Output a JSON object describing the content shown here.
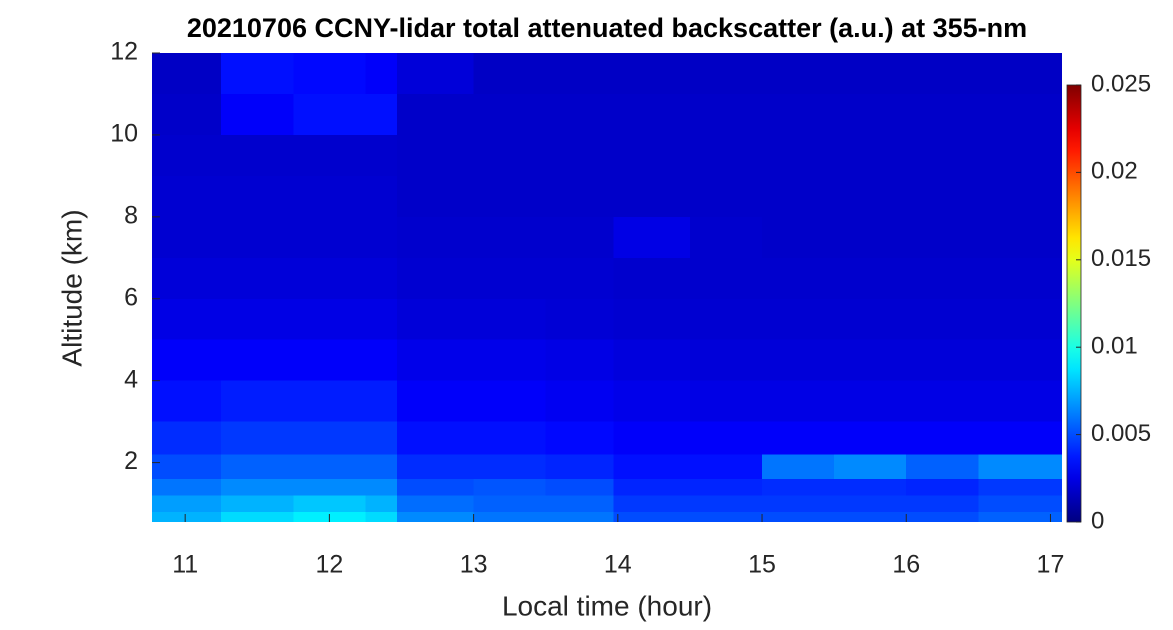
{
  "chart_data": {
    "type": "heatmap",
    "title": "20210706 CCNY-lidar total attenuated backscatter (a.u.) at 355-nm",
    "x_label": "Local time (hour)",
    "y_label": "Altitude (km)",
    "x": [
      10.77,
      11.25,
      11.75,
      12.25,
      12.47,
      13,
      13.5,
      13.97,
      14.5,
      15,
      15.5,
      16,
      16.5,
      17.08
    ],
    "y": [
      0.55,
      0.8,
      1.2,
      1.6,
      2.2,
      3,
      4,
      5,
      6,
      7,
      8,
      9,
      10,
      11,
      12
    ],
    "z": [
      [
        0.0075,
        0.0085,
        0.009,
        0.0085,
        0.0065,
        0.006,
        0.006,
        0.005,
        0.005,
        0.005,
        0.005,
        0.005,
        0.0055
      ],
      [
        0.007,
        0.0075,
        0.008,
        0.0075,
        0.0058,
        0.0055,
        0.0055,
        0.0045,
        0.0045,
        0.0045,
        0.0045,
        0.0045,
        0.005
      ],
      [
        0.006,
        0.0065,
        0.0065,
        0.0065,
        0.005,
        0.0052,
        0.005,
        0.004,
        0.004,
        0.0042,
        0.0042,
        0.004,
        0.0045
      ],
      [
        0.005,
        0.0055,
        0.0055,
        0.0055,
        0.0042,
        0.0042,
        0.004,
        0.0035,
        0.0035,
        0.006,
        0.0065,
        0.0055,
        0.0065
      ],
      [
        0.0042,
        0.0045,
        0.0045,
        0.0045,
        0.0035,
        0.0035,
        0.0033,
        0.003,
        0.003,
        0.003,
        0.003,
        0.003,
        0.003
      ],
      [
        0.0035,
        0.0038,
        0.0038,
        0.0038,
        0.003,
        0.003,
        0.0028,
        0.0026,
        0.0025,
        0.0025,
        0.0025,
        0.0025,
        0.0025
      ],
      [
        0.003,
        0.003,
        0.003,
        0.003,
        0.0026,
        0.0026,
        0.0025,
        0.0023,
        0.0022,
        0.0022,
        0.0022,
        0.0022,
        0.0022
      ],
      [
        0.0025,
        0.0025,
        0.0025,
        0.0025,
        0.0022,
        0.0022,
        0.0021,
        0.002,
        0.002,
        0.002,
        0.002,
        0.002,
        0.002
      ],
      [
        0.0022,
        0.0022,
        0.0022,
        0.0022,
        0.002,
        0.002,
        0.002,
        0.0019,
        0.0019,
        0.0019,
        0.0019,
        0.0019,
        0.0019
      ],
      [
        0.002,
        0.002,
        0.002,
        0.002,
        0.0019,
        0.0019,
        0.0019,
        0.0025,
        0.0019,
        0.0018,
        0.0018,
        0.0018,
        0.0018
      ],
      [
        0.002,
        0.002,
        0.002,
        0.002,
        0.0018,
        0.0018,
        0.0018,
        0.0018,
        0.0018,
        0.0018,
        0.0018,
        0.0018,
        0.0018
      ],
      [
        0.0019,
        0.0019,
        0.0019,
        0.0019,
        0.0018,
        0.0018,
        0.0018,
        0.0018,
        0.0018,
        0.0018,
        0.0018,
        0.0018,
        0.0018
      ],
      [
        0.0018,
        0.003,
        0.0035,
        0.0035,
        0.0018,
        0.0018,
        0.0018,
        0.0018,
        0.0018,
        0.0018,
        0.0018,
        0.0018,
        0.0018
      ],
      [
        0.0017,
        0.0035,
        0.0033,
        0.003,
        0.0022,
        0.0017,
        0.0017,
        0.0017,
        0.0017,
        0.0017,
        0.0017,
        0.0017,
        0.0017
      ]
    ],
    "xlim": [
      10.77,
      17.08
    ],
    "ylim": [
      0.55,
      12
    ],
    "xticks": [
      11,
      12,
      13,
      14,
      15,
      16,
      17
    ],
    "yticks": [
      2,
      4,
      6,
      8,
      10,
      12
    ],
    "colormap": "jet",
    "clim": [
      0,
      0.025
    ],
    "cticks": [
      0,
      0.005,
      0.01,
      0.015,
      0.02,
      0.025
    ]
  }
}
